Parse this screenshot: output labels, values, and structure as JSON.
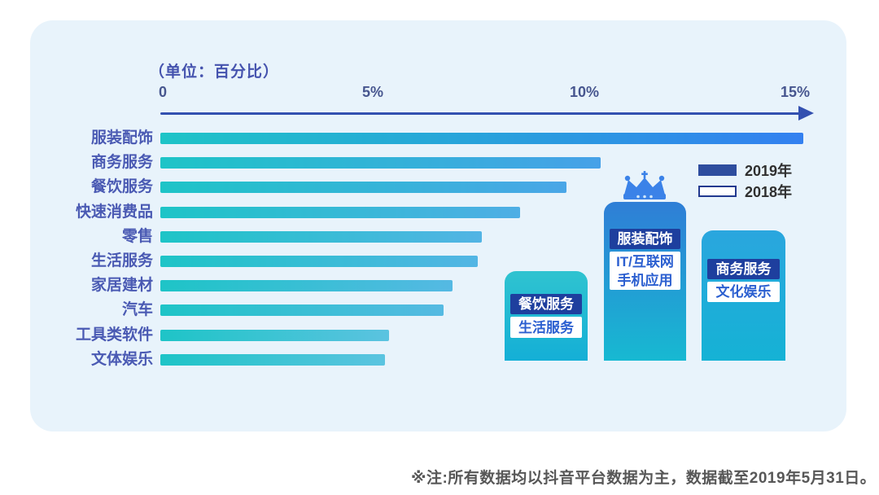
{
  "chart_data": {
    "type": "bar",
    "orientation": "horizontal",
    "title": "（单位：百分比）",
    "x_ticks": [
      "0",
      "5%",
      "10%",
      "15%"
    ],
    "xlim": [
      0,
      15.5
    ],
    "x_unit": "percent",
    "categories": [
      "服装配饰",
      "商务服务",
      "餐饮服务",
      "快速消费品",
      "零售",
      "生活服务",
      "家居建材",
      "汽车",
      "工具类软件",
      "文体娱乐"
    ],
    "values": [
      15.2,
      10.4,
      9.6,
      8.5,
      7.6,
      7.5,
      6.9,
      6.7,
      5.4,
      5.3
    ],
    "legend": [
      {
        "label": "2019年",
        "style": "filled",
        "color": "#2e4d9e"
      },
      {
        "label": "2018年",
        "style": "outline",
        "color": "#ffffff"
      }
    ],
    "legend_position": "right"
  },
  "podium": {
    "columns": [
      {
        "rank": 2,
        "rank_label": "餐饮服务",
        "sub_label": "生活服务",
        "crown": false
      },
      {
        "rank": 1,
        "rank_label": "服装配饰",
        "sub_label": "IT/互联网 手机应用",
        "sub_label_line1": "IT/互联网",
        "sub_label_line2": "手机应用",
        "crown": true
      },
      {
        "rank": 3,
        "rank_label": "商务服务",
        "sub_label": "文化娱乐",
        "crown": false
      }
    ]
  },
  "footer_note": "※注:所有数据均以抖音平台数据为主，数据截至2019年5月31日。",
  "theme": {
    "panel_bg": "#e8f3fb",
    "bar_start_color": "#1ec4c7",
    "bar_end_color_max": "#3380f0",
    "bar_end_color_min": "#5bc4e0",
    "axis_color": "#3350b0",
    "label_color": "#4a5ab3",
    "tick_color": "#47568f",
    "navy_badge_color": "#1e3f9e",
    "crown_color": "#3b82e8",
    "footer_color": "#575757"
  }
}
